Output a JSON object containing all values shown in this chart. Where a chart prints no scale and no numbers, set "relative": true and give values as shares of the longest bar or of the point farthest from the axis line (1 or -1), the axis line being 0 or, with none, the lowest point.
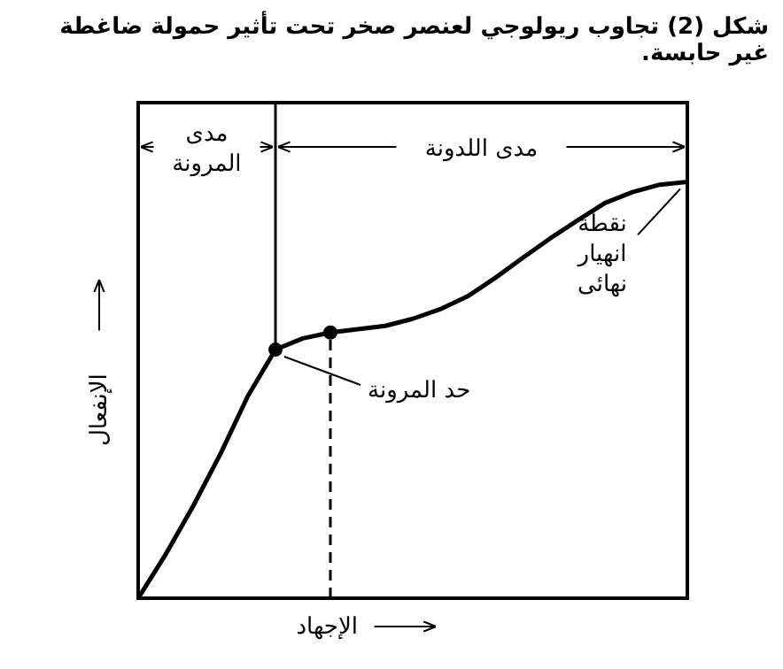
{
  "chart_data": {
    "type": "line",
    "title": "شكل (2) تجاوب ريولوجي لعنصر صخر تحت تأثير حمولة ضاغطة غير حابسة.",
    "xlabel": "الإجهاد",
    "ylabel": "الإنفعال",
    "relative": true,
    "tick_labels": false,
    "marker": "none",
    "categories": [
      null,
      null,
      null,
      null,
      null,
      null,
      null,
      null,
      null,
      null,
      null,
      null,
      null,
      null,
      null,
      null,
      null,
      null,
      null,
      null,
      null
    ],
    "series": [
      {
        "color": "#000000",
        "values": [
          0,
          0.105,
          0.221,
          0.347,
          0.486,
          0.597,
          0.624,
          0.638,
          0.646,
          0.654,
          0.671,
          0.694,
          0.725,
          0.769,
          0.817,
          0.864,
          0.907,
          0.949,
          0.975,
          0.993,
          1
        ]
      }
    ],
    "annotations": [
      "مدى المرونة",
      "مدى اللدونة",
      "حد المرونة",
      "نقطة انهيار نهائى"
    ]
  }
}
